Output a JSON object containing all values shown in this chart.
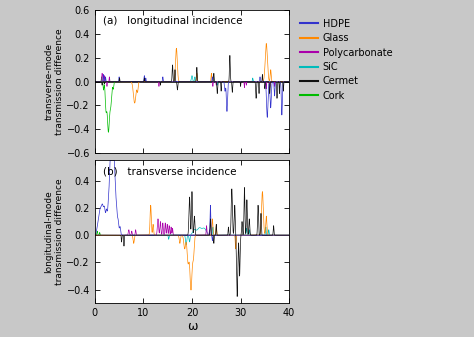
{
  "title_a": "(a)   longitudinal incidence",
  "title_b": "(b)   transverse incidence",
  "xlabel": "ω",
  "ylabel_a": "transverse-mode\ntransmission difference",
  "ylabel_b": "longitudinal-mode\ntransmission difference",
  "xlim": [
    0,
    40
  ],
  "ylim_a": [
    -0.6,
    0.6
  ],
  "ylim_b": [
    -0.5,
    0.55
  ],
  "yticks_a": [
    -0.6,
    -0.4,
    -0.2,
    0.0,
    0.2,
    0.4,
    0.6
  ],
  "yticks_b": [
    -0.4,
    -0.2,
    0.0,
    0.2,
    0.4
  ],
  "xticks": [
    0,
    10,
    20,
    30,
    40
  ],
  "legend_labels": [
    "HDPE",
    "Glass",
    "Polycarbonate",
    "SiC",
    "Cermet",
    "Cork"
  ],
  "colors": {
    "HDPE": "#3333cc",
    "Glass": "#ff8800",
    "Polycarbonate": "#aa00aa",
    "SiC": "#00bbbb",
    "Cermet": "#111111",
    "Cork": "#00bb00"
  },
  "plot_bg": "#ffffff",
  "fig_bg": "#c8c8c8",
  "seed": 42
}
